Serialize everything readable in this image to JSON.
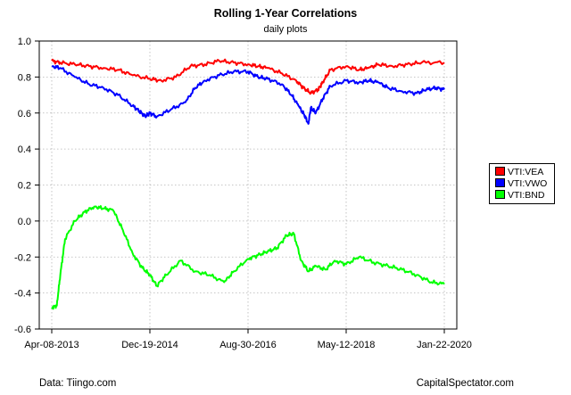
{
  "title": "Rolling 1-Year Correlations",
  "subtitle": "daily plots",
  "footer": {
    "left": "Data: Tiingo.com",
    "right": "CapitalSpectator.com"
  },
  "chart_data": {
    "type": "line",
    "title": "Rolling 1-Year Correlations",
    "subtitle": "daily plots",
    "xlabel": "",
    "ylabel": "",
    "ylim": [
      -0.6,
      1.0
    ],
    "yticks": [
      "1.0",
      "0.8",
      "0.6",
      "0.4",
      "0.2",
      "0.0",
      "-0.2",
      "-0.4",
      "-0.6"
    ],
    "ytick_values": [
      1.0,
      0.8,
      0.6,
      0.4,
      0.2,
      0.0,
      -0.2,
      -0.4,
      -0.6
    ],
    "xticks": [
      "Apr-08-2013",
      "Dec-19-2014",
      "Aug-30-2016",
      "May-12-2018",
      "Jan-22-2020"
    ],
    "xtick_dates": [
      "2013-04-08",
      "2014-12-19",
      "2016-08-30",
      "2018-05-12",
      "2020-01-22"
    ],
    "xlim": [
      "2013-04-08",
      "2020-01-22"
    ],
    "grid": true,
    "legend_position": "right",
    "series": [
      {
        "name": "VTI:VEA",
        "color": "#ff0000",
        "points": [
          [
            "2013-04-08",
            0.89
          ],
          [
            "2013-06-01",
            0.88
          ],
          [
            "2013-09-01",
            0.87
          ],
          [
            "2013-12-01",
            0.86
          ],
          [
            "2014-03-01",
            0.85
          ],
          [
            "2014-06-01",
            0.84
          ],
          [
            "2014-09-01",
            0.81
          ],
          [
            "2014-12-19",
            0.79
          ],
          [
            "2015-03-01",
            0.78
          ],
          [
            "2015-06-01",
            0.8
          ],
          [
            "2015-09-01",
            0.86
          ],
          [
            "2015-12-01",
            0.87
          ],
          [
            "2016-03-01",
            0.89
          ],
          [
            "2016-06-01",
            0.88
          ],
          [
            "2016-08-30",
            0.87
          ],
          [
            "2016-11-01",
            0.86
          ],
          [
            "2017-01-01",
            0.85
          ],
          [
            "2017-04-01",
            0.82
          ],
          [
            "2017-07-01",
            0.78
          ],
          [
            "2017-08-15",
            0.74
          ],
          [
            "2017-10-01",
            0.71
          ],
          [
            "2017-11-15",
            0.73
          ],
          [
            "2017-12-15",
            0.77
          ],
          [
            "2018-02-01",
            0.84
          ],
          [
            "2018-05-12",
            0.86
          ],
          [
            "2018-08-01",
            0.84
          ],
          [
            "2018-10-01",
            0.85
          ],
          [
            "2018-12-01",
            0.87
          ],
          [
            "2019-03-01",
            0.86
          ],
          [
            "2019-06-01",
            0.87
          ],
          [
            "2019-09-01",
            0.88
          ],
          [
            "2020-01-22",
            0.88
          ]
        ]
      },
      {
        "name": "VTI:VWO",
        "color": "#0000ff",
        "points": [
          [
            "2013-04-08",
            0.86
          ],
          [
            "2013-06-01",
            0.85
          ],
          [
            "2013-09-01",
            0.8
          ],
          [
            "2013-12-01",
            0.76
          ],
          [
            "2014-03-01",
            0.74
          ],
          [
            "2014-06-01",
            0.7
          ],
          [
            "2014-09-01",
            0.64
          ],
          [
            "2014-10-15",
            0.61
          ],
          [
            "2014-11-20",
            0.58
          ],
          [
            "2014-12-19",
            0.6
          ],
          [
            "2015-02-01",
            0.58
          ],
          [
            "2015-05-01",
            0.62
          ],
          [
            "2015-08-01",
            0.66
          ],
          [
            "2015-10-01",
            0.74
          ],
          [
            "2015-12-01",
            0.78
          ],
          [
            "2016-03-01",
            0.81
          ],
          [
            "2016-06-01",
            0.83
          ],
          [
            "2016-08-30",
            0.83
          ],
          [
            "2016-11-01",
            0.8
          ],
          [
            "2017-01-01",
            0.79
          ],
          [
            "2017-04-01",
            0.76
          ],
          [
            "2017-06-01",
            0.7
          ],
          [
            "2017-07-15",
            0.64
          ],
          [
            "2017-08-20",
            0.59
          ],
          [
            "2017-09-15",
            0.54
          ],
          [
            "2017-10-01",
            0.63
          ],
          [
            "2017-11-01",
            0.6
          ],
          [
            "2017-12-15",
            0.68
          ],
          [
            "2018-02-01",
            0.75
          ],
          [
            "2018-05-12",
            0.78
          ],
          [
            "2018-08-01",
            0.77
          ],
          [
            "2018-10-01",
            0.78
          ],
          [
            "2018-12-01",
            0.77
          ],
          [
            "2019-02-01",
            0.74
          ],
          [
            "2019-05-01",
            0.72
          ],
          [
            "2019-08-01",
            0.71
          ],
          [
            "2019-10-01",
            0.73
          ],
          [
            "2019-12-01",
            0.74
          ],
          [
            "2020-01-22",
            0.73
          ]
        ]
      },
      {
        "name": "VTI:BND",
        "color": "#00ff00",
        "points": [
          [
            "2013-04-08",
            -0.48
          ],
          [
            "2013-05-10",
            -0.47
          ],
          [
            "2013-06-01",
            -0.3
          ],
          [
            "2013-07-01",
            -0.1
          ],
          [
            "2013-09-01",
            0.0
          ],
          [
            "2013-11-01",
            0.05
          ],
          [
            "2014-01-01",
            0.08
          ],
          [
            "2014-03-01",
            0.07
          ],
          [
            "2014-05-01",
            0.06
          ],
          [
            "2014-07-01",
            -0.05
          ],
          [
            "2014-09-01",
            -0.18
          ],
          [
            "2014-11-01",
            -0.26
          ],
          [
            "2014-12-19",
            -0.3
          ],
          [
            "2015-02-01",
            -0.36
          ],
          [
            "2015-04-01",
            -0.3
          ],
          [
            "2015-07-01",
            -0.22
          ],
          [
            "2015-10-01",
            -0.28
          ],
          [
            "2016-01-01",
            -0.3
          ],
          [
            "2016-04-01",
            -0.34
          ],
          [
            "2016-06-01",
            -0.28
          ],
          [
            "2016-08-30",
            -0.21
          ],
          [
            "2016-11-01",
            -0.19
          ],
          [
            "2017-01-01",
            -0.17
          ],
          [
            "2017-03-01",
            -0.15
          ],
          [
            "2017-05-01",
            -0.08
          ],
          [
            "2017-06-15",
            -0.07
          ],
          [
            "2017-08-01",
            -0.22
          ],
          [
            "2017-09-15",
            -0.28
          ],
          [
            "2017-11-01",
            -0.25
          ],
          [
            "2018-01-01",
            -0.27
          ],
          [
            "2018-03-01",
            -0.22
          ],
          [
            "2018-05-12",
            -0.24
          ],
          [
            "2018-08-01",
            -0.2
          ],
          [
            "2018-11-01",
            -0.23
          ],
          [
            "2019-02-01",
            -0.25
          ],
          [
            "2019-05-01",
            -0.27
          ],
          [
            "2019-08-01",
            -0.3
          ],
          [
            "2019-11-01",
            -0.34
          ],
          [
            "2020-01-22",
            -0.35
          ]
        ]
      }
    ]
  }
}
